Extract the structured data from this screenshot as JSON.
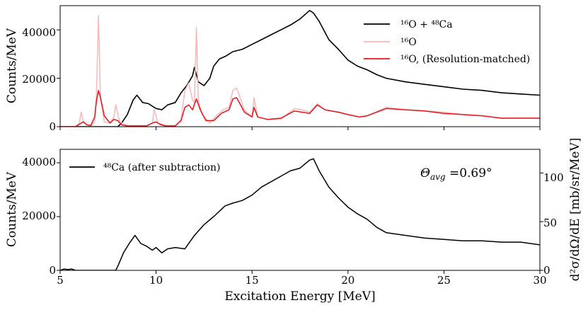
{
  "chart_data": [
    {
      "type": "line",
      "panel": "top",
      "xlim": [
        5,
        30
      ],
      "ylim": [
        0,
        50000
      ],
      "xticks": [
        5,
        10,
        15,
        20,
        25,
        30
      ],
      "yticks": [
        0,
        20000,
        40000
      ],
      "ytick_labels": [
        "0",
        "20000",
        "40000"
      ],
      "xlabel": "",
      "ylabel": "Counts/MeV",
      "legend_position": "top-right",
      "series": [
        {
          "name": "16O + 48Ca",
          "legend_label": "¹⁶O + ⁴⁸Ca",
          "color": "#000000",
          "x": [
            5.0,
            6.0,
            7.0,
            7.5,
            8.0,
            8.2,
            8.5,
            8.8,
            9.0,
            9.3,
            9.6,
            10.0,
            10.3,
            10.6,
            11.0,
            11.3,
            11.6,
            11.9,
            12.0,
            12.2,
            12.5,
            12.8,
            13.0,
            13.3,
            13.6,
            14.0,
            14.5,
            15.0,
            15.5,
            16.0,
            16.5,
            17.0,
            17.5,
            18.0,
            18.2,
            18.5,
            19.0,
            19.5,
            20.0,
            20.5,
            21.0,
            21.5,
            22.0,
            23.0,
            24.0,
            25.0,
            26.0,
            27.0,
            28.0,
            29.0,
            30.0
          ],
          "y": [
            0,
            0,
            0,
            0,
            0,
            1500,
            5000,
            11000,
            13000,
            10000,
            9500,
            7500,
            7000,
            9000,
            10000,
            14000,
            17000,
            21000,
            24500,
            18500,
            17000,
            20000,
            25000,
            28000,
            29000,
            31000,
            32000,
            34000,
            36000,
            38000,
            40000,
            42000,
            44500,
            48000,
            47000,
            43500,
            36000,
            32000,
            27500,
            25000,
            23500,
            21500,
            20000,
            18500,
            17500,
            16500,
            15500,
            15000,
            14000,
            13500,
            13000
          ]
        },
        {
          "name": "16O",
          "legend_label": "¹⁶O",
          "color": "#f5b9b9",
          "x": [
            5.0,
            5.8,
            6.0,
            6.1,
            6.2,
            6.4,
            6.6,
            6.8,
            6.9,
            7.0,
            7.1,
            7.3,
            7.6,
            7.8,
            7.9,
            8.1,
            8.5,
            9.0,
            9.5,
            9.8,
            9.9,
            10.1,
            10.5,
            11.0,
            11.3,
            11.5,
            11.7,
            11.9,
            12.0,
            12.1,
            12.2,
            12.4,
            12.8,
            13.2,
            13.5,
            13.8,
            14.0,
            14.2,
            14.6,
            15.0,
            15.1,
            15.3,
            15.8,
            16.5,
            17.2,
            17.6,
            18.0,
            18.4,
            18.8,
            19.5,
            20.0,
            20.6,
            21.0,
            22.0,
            23.0,
            24.0,
            25.0,
            26.0,
            27.0,
            28.0,
            30.0
          ],
          "y": [
            0,
            0,
            1500,
            6000,
            2500,
            500,
            500,
            2000,
            15000,
            46000,
            12000,
            2000,
            1500,
            4000,
            9000,
            2000,
            500,
            500,
            500,
            1500,
            7000,
            1500,
            500,
            500,
            3000,
            15000,
            18000,
            11000,
            10000,
            41000,
            11000,
            5000,
            1500,
            5000,
            7000,
            8000,
            15000,
            16000,
            7000,
            4000,
            12000,
            4000,
            3000,
            3000,
            7500,
            7000,
            6000,
            9500,
            7000,
            6000,
            5000,
            4000,
            4500,
            8000,
            7000,
            6500,
            6000,
            5000,
            4500,
            3500,
            3500
          ]
        },
        {
          "name": "16O, (Resolution-matched)",
          "legend_label": "¹⁶O, (Resolution-matched)",
          "color": "#e8141c",
          "x": [
            5.0,
            5.8,
            6.0,
            6.2,
            6.4,
            6.6,
            6.8,
            6.9,
            7.0,
            7.1,
            7.3,
            7.6,
            7.8,
            8.0,
            8.2,
            8.5,
            9.0,
            9.5,
            9.8,
            10.0,
            10.2,
            10.5,
            11.0,
            11.3,
            11.5,
            11.7,
            11.9,
            12.1,
            12.3,
            12.6,
            13.0,
            13.4,
            13.8,
            14.0,
            14.2,
            14.6,
            15.0,
            15.1,
            15.3,
            15.8,
            16.5,
            17.2,
            17.6,
            18.0,
            18.4,
            18.8,
            19.5,
            20.0,
            20.6,
            21.0,
            22.0,
            23.0,
            24.0,
            25.0,
            26.0,
            27.0,
            28.0,
            30.0
          ],
          "y": [
            0,
            0,
            1000,
            2000,
            800,
            500,
            4000,
            11000,
            15000,
            12000,
            4500,
            1500,
            3000,
            2500,
            800,
            300,
            300,
            300,
            1500,
            2000,
            1000,
            300,
            300,
            2500,
            8000,
            9000,
            7000,
            11500,
            7000,
            2500,
            2500,
            5500,
            7000,
            11500,
            12000,
            6000,
            4000,
            8000,
            4000,
            3000,
            3500,
            6500,
            6000,
            5500,
            9000,
            7000,
            6000,
            5000,
            4000,
            4500,
            7500,
            7000,
            6500,
            5500,
            5000,
            4500,
            3500,
            3500
          ]
        }
      ]
    },
    {
      "type": "line",
      "panel": "bottom",
      "xlim": [
        5,
        30
      ],
      "ylim": [
        0,
        45000
      ],
      "xticks": [
        5,
        10,
        15,
        20,
        25,
        30
      ],
      "xtick_labels": [
        "5",
        "10",
        "15",
        "20",
        "25",
        "30"
      ],
      "yticks": [
        0,
        20000,
        40000
      ],
      "ytick_labels": [
        "0",
        "20000",
        "40000"
      ],
      "xlabel": "Excitation Energy [MeV]",
      "ylabel": "Counts/MeV",
      "y2label": "d²σ/dΩ/dE [mb/sr/MeV]",
      "y2lim": [
        0,
        124.3
      ],
      "y2ticks": [
        0,
        50,
        100
      ],
      "y2tick_labels": [
        "0",
        "50",
        "100"
      ],
      "legend_position": "top-left",
      "annotation": "Θavg =0.69°",
      "annotation_parts": {
        "symbol": "Θ",
        "subscript": "avg",
        "rest": " =0.69°"
      },
      "series": [
        {
          "name": "48Ca (after subtraction)",
          "legend_label": "⁴⁸Ca (after subtraction)",
          "color": "#000000",
          "x": [
            5.0,
            5.2,
            5.4,
            5.6,
            5.8,
            6.0,
            7.0,
            7.9,
            8.0,
            8.3,
            8.6,
            8.9,
            9.2,
            9.5,
            9.8,
            10.0,
            10.3,
            10.6,
            11.0,
            11.5,
            12.0,
            12.5,
            13.0,
            13.3,
            13.6,
            14.0,
            14.5,
            15.0,
            15.5,
            16.0,
            16.5,
            17.0,
            17.5,
            18.0,
            18.2,
            18.5,
            19.0,
            19.5,
            20.0,
            20.5,
            21.0,
            21.5,
            22.0,
            23.0,
            24.0,
            25.0,
            26.0,
            27.0,
            28.0,
            29.0,
            30.0
          ],
          "y": [
            0,
            500,
            300,
            500,
            0,
            0,
            0,
            0,
            1500,
            6500,
            10000,
            13000,
            10000,
            9000,
            7500,
            8500,
            6500,
            8000,
            8500,
            8000,
            13000,
            17000,
            20000,
            22000,
            24000,
            25000,
            26000,
            28000,
            31000,
            33000,
            35000,
            37000,
            38000,
            41000,
            41500,
            37000,
            31000,
            27000,
            23500,
            21000,
            19000,
            16000,
            14000,
            13000,
            12000,
            11500,
            11000,
            11000,
            10500,
            10500,
            9500
          ]
        }
      ]
    }
  ]
}
